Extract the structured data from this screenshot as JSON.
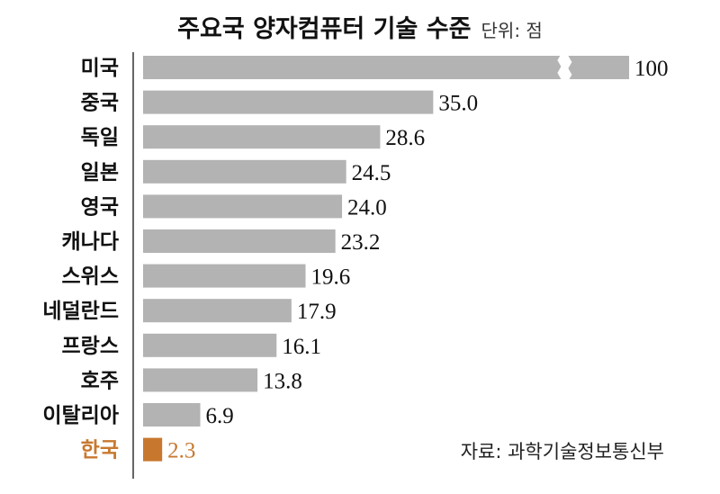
{
  "chart_data": {
    "type": "bar",
    "orientation": "horizontal",
    "title": "주요국 양자컴퓨터 기술 수준",
    "unit_label": "단위: 점",
    "source": "자료: 과학기술정보통신부",
    "categories": [
      "미국",
      "중국",
      "독일",
      "일본",
      "영국",
      "캐나다",
      "스위스",
      "네덜란드",
      "프랑스",
      "호주",
      "이탈리아",
      "한국"
    ],
    "values": [
      100,
      35.0,
      28.6,
      24.5,
      24.0,
      23.2,
      19.6,
      17.9,
      16.1,
      13.8,
      6.9,
      2.3
    ],
    "value_labels": [
      "100",
      "35.0",
      "28.6",
      "24.5",
      "24.0",
      "23.2",
      "19.6",
      "17.9",
      "16.1",
      "13.8",
      "6.9",
      "2.3"
    ],
    "broken_axis_bar": "미국",
    "highlight_category": "한국",
    "colors": {
      "bar": "#b3b3b3",
      "highlight": "#c8782e",
      "text": "#111111",
      "axis": "#333333"
    }
  }
}
